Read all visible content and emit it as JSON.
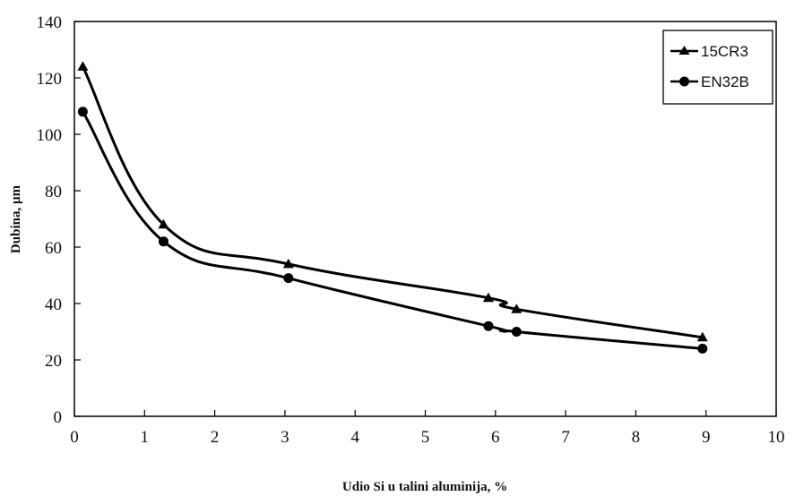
{
  "chart_data": {
    "type": "line",
    "xlabel": "Udio Si u talini aluminija, %",
    "ylabel": "Dubina, µm",
    "xlim": [
      0,
      10
    ],
    "ylim": [
      0,
      140
    ],
    "xticks": [
      0,
      1,
      2,
      3,
      4,
      5,
      6,
      7,
      8,
      9,
      10
    ],
    "yticks": [
      0,
      20,
      40,
      60,
      80,
      100,
      120,
      140
    ],
    "grid": false,
    "legend_position": "top-right",
    "series": [
      {
        "name": "15CR3",
        "marker": "triangle",
        "color": "#000000",
        "x": [
          0.12,
          1.27,
          3.05,
          5.9,
          6.3,
          8.95
        ],
        "y": [
          124,
          68,
          54,
          42,
          38,
          28
        ]
      },
      {
        "name": "EN32B",
        "marker": "circle",
        "color": "#000000",
        "x": [
          0.12,
          1.27,
          3.05,
          5.9,
          6.3,
          8.95
        ],
        "y": [
          108,
          62,
          49,
          32,
          30,
          24
        ]
      }
    ]
  }
}
